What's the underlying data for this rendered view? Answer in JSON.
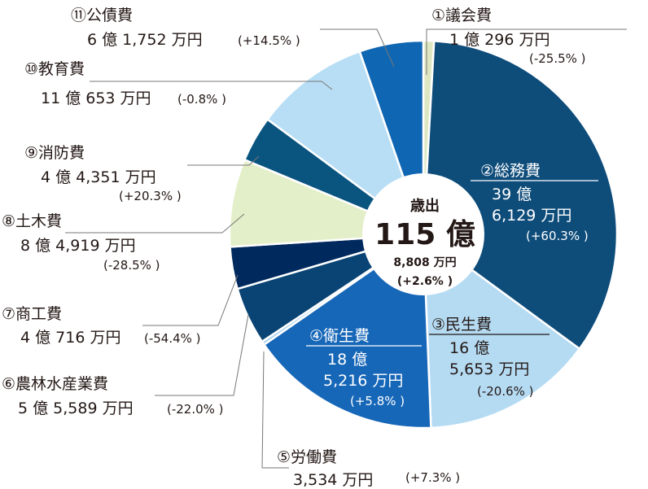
{
  "chart_data": {
    "type": "pie",
    "center": {
      "title": "歳出",
      "value": "115 億",
      "sub": "8,808 万円",
      "change": "(+2.6% )"
    },
    "slices": [
      {
        "id": 1,
        "name": "①議会費",
        "amount_man_yen": 10296,
        "line1": "1 億 296 万円",
        "line2": "",
        "change": "(-25.5% )",
        "color": "#dde8c2"
      },
      {
        "id": 2,
        "name": "②総務費",
        "amount_man_yen": 396129,
        "line1": "39 億",
        "line2": "6,129 万円",
        "change": "(+60.3% )",
        "color": "#0e4c7a"
      },
      {
        "id": 3,
        "name": "③民生費",
        "amount_man_yen": 165653,
        "line1": "16 億",
        "line2": "5,653 万円",
        "change": "(-20.6% )",
        "color": "#b5dbf3"
      },
      {
        "id": 4,
        "name": "④衛生費",
        "amount_man_yen": 185216,
        "line1": "18 億",
        "line2": "5,216 万円",
        "change": "(+5.8% )",
        "color": "#1767b8"
      },
      {
        "id": 5,
        "name": "⑤労働費",
        "amount_man_yen": 3534,
        "line1": "3,534 万円",
        "line2": "",
        "change": "(+7.3% )",
        "color": "#a9d3ef"
      },
      {
        "id": 6,
        "name": "⑥農林水産業費",
        "amount_man_yen": 55589,
        "line1": "5 億 5,589 万円",
        "line2": "",
        "change": "(-22.0% )",
        "color": "#0a4474"
      },
      {
        "id": 7,
        "name": "⑦商工費",
        "amount_man_yen": 40716,
        "line1": "4 億 716 万円",
        "line2": "",
        "change": "(-54.4% )",
        "color": "#002a5e"
      },
      {
        "id": 8,
        "name": "⑧土木費",
        "amount_man_yen": 84919,
        "line1": "8 億 4,919 万円",
        "line2": "",
        "change": "(-28.5% )",
        "color": "#e3efc8"
      },
      {
        "id": 9,
        "name": "⑨消防費",
        "amount_man_yen": 44351,
        "line1": "4 億 4,351 万円",
        "line2": "",
        "change": "(+20.3% )",
        "color": "#0a5480"
      },
      {
        "id": 10,
        "name": "⑩教育費",
        "amount_man_yen": 110653,
        "line1": "11 億 653 万円",
        "line2": "",
        "change": "(-0.8% )",
        "color": "#b8def5"
      },
      {
        "id": 11,
        "name": "⑪公債費",
        "amount_man_yen": 61752,
        "line1": "6 億 1,752 万円",
        "line2": "",
        "change": "(+14.5% )",
        "color": "#0f66b2"
      }
    ],
    "extra_slice_color": "#a3c6ea"
  }
}
